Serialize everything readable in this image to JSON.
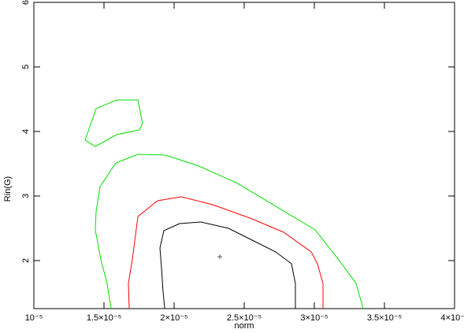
{
  "chart_data": {
    "type": "line",
    "x_label": "norm",
    "y_label": "Rin(G)",
    "xlim": [
      1e-05,
      4e-05
    ],
    "xticks": [
      {
        "value": 1e-05,
        "label": "10⁻⁵"
      },
      {
        "value": 1.5e-05,
        "label": "1.5×10⁻⁵"
      },
      {
        "value": 2e-05,
        "label": "2×10⁻⁵"
      },
      {
        "value": 2.5e-05,
        "label": "2.5×10⁻⁵"
      },
      {
        "value": 3e-05,
        "label": "3×10⁻⁵"
      },
      {
        "value": 3.5e-05,
        "label": "3.5×10⁻⁵"
      },
      {
        "value": 4e-05,
        "label": "4×10⁻⁵"
      }
    ],
    "ylim": [
      1.256,
      6
    ],
    "yticks": [
      2,
      3,
      4,
      5,
      6
    ],
    "series": [
      {
        "color": "#00e000",
        "x": [
          1.551e-05,
          1.522e-05,
          1.478e-05,
          1.438e-05,
          1.444e-05,
          1.472e-05,
          1.584e-05,
          1.742e-05,
          1.938e-05,
          2.163e-05,
          2.444e-05,
          2.725e-05,
          3.006e-05,
          3.174e-05,
          3.298e-05,
          3.348e-05
        ],
        "values": [
          1.256,
          1.646,
          2.012,
          2.476,
          2.768,
          3.146,
          3.512,
          3.646,
          3.634,
          3.476,
          3.207,
          2.841,
          2.476,
          2.012,
          1.646,
          1.256
        ]
      },
      {
        "color": "#00e000",
        "x": [
          1.365e-05,
          1.444e-05,
          1.59e-05,
          1.742e-05,
          1.775e-05,
          1.753e-05,
          1.59e-05,
          1.438e-05,
          1.365e-05
        ],
        "values": [
          3.866,
          4.354,
          4.488,
          4.488,
          4.122,
          4.024,
          3.951,
          3.768,
          3.866
        ]
      },
      {
        "color": "#ff0000",
        "x": [
          1.68e-05,
          1.674e-05,
          1.702e-05,
          1.742e-05,
          1.882e-05,
          2.051e-05,
          2.275e-05,
          2.556e-05,
          2.781e-05,
          2.978e-05,
          3.022e-05,
          3.062e-05,
          3.062e-05
        ],
        "values": [
          1.256,
          1.646,
          2.012,
          2.683,
          2.927,
          2.988,
          2.866,
          2.646,
          2.439,
          2.134,
          1.951,
          1.646,
          1.256
        ]
      },
      {
        "color": "#000000",
        "x": [
          1.933e-05,
          1.921e-05,
          1.91e-05,
          1.899e-05,
          1.927e-05,
          2.039e-05,
          2.191e-05,
          2.388e-05,
          2.556e-05,
          2.725e-05,
          2.837e-05,
          2.865e-05,
          2.865e-05
        ],
        "values": [
          1.256,
          1.524,
          1.89,
          2.195,
          2.463,
          2.573,
          2.598,
          2.5,
          2.317,
          2.134,
          1.951,
          1.646,
          1.256
        ]
      }
    ],
    "best_fit": {
      "x": 2.326e-05,
      "y": 2.06,
      "color": "#555555"
    }
  }
}
